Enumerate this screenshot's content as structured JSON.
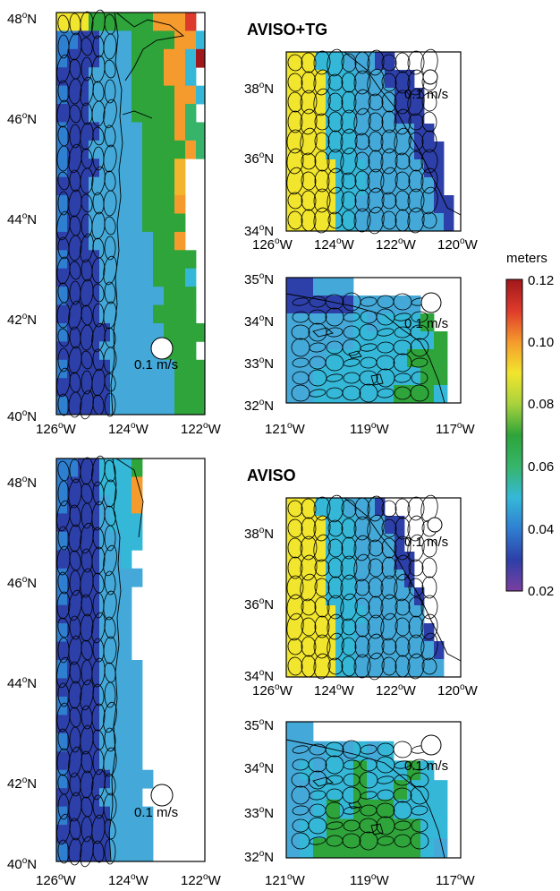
{
  "colorbar": {
    "unit_label": "meters",
    "min": 0.02,
    "max": 0.12,
    "ticks": [
      "0.12",
      "0.10",
      "0.08",
      "0.06",
      "0.04",
      "0.02"
    ],
    "colors": [
      "#7b3fa0",
      "#2d3fa8",
      "#2f7fd1",
      "#35b8d8",
      "#36b56a",
      "#2ea43a",
      "#a8d23c",
      "#f2e52d",
      "#f59a2c",
      "#de3a2b",
      "#a0181c"
    ]
  },
  "section_titles": {
    "upper": "AVISO+TG",
    "lower": "AVISO"
  },
  "panels": [
    {
      "id": "upper-north",
      "lat_labels": [
        "48°N",
        "46°N",
        "44°N",
        "42°N",
        "40°N"
      ],
      "lon_labels": [
        "126°W",
        "124°W",
        "122°W"
      ],
      "ref_vector": "0.1 m/s",
      "grid": [
        "yyy555555ddde",
        "ssbb4445555ddcn",
        "sbbb444555ddcn",
        "bbb4444555ddc",
        "sbb44445555ddc",
        "bbb44445555d6",
        "sbbb4444555d66",
        "sbb444445555d6",
        "sbbb4444555a",
        "bbb44444555a",
        "sbb44444555d",
        "sbb444445555",
        "bbb44444455d",
        "sbbb444445555",
        "bbbb44444555c",
        "sbbb444444555",
        "bbbb444445555",
        "sbbbb444445555",
        "bbbb444444555",
        "sbbbb444444555",
        "bbbbb444444555",
        "sbbbb4444445555"
      ]
    },
    {
      "id": "upper-south",
      "lat_labels": [
        "38°N",
        "36°N",
        "34°N"
      ],
      "lon_labels": [
        "126°W",
        "124°W",
        "122°W",
        "120°W"
      ],
      "ref_vector": "0.1 m/s",
      "grid": [
        "yyyccc444bb",
        "yyyyccc444bbb",
        "yyyyccc4444bbb",
        "yyyyccc4444bbb",
        "yyyyccc444444bb",
        "yyyyccc444444bbb",
        "yyyyyccc444444bb",
        "yyyyyccc4444444b",
        "yyyyycc44444444bb",
        "yyyyycc444444444b"
      ]
    },
    {
      "id": "upper-socal",
      "lat_labels": [
        "35°N",
        "34°N",
        "33°N",
        "32°N"
      ],
      "lon_labels": [
        "121°W",
        "119°W",
        "117°W"
      ],
      "ref_vector": "0.1 m/s",
      "grid": [
        "bb444",
        "bbbbb44444",
        "44444c4ccc5",
        "44444cccccc5",
        "444cccccc555",
        "44cccccccc55",
        "44cccccc555c"
      ]
    },
    {
      "id": "lower-north",
      "lat_labels": [
        "48°N",
        "46°N",
        "44°N",
        "42°N",
        "40°N"
      ],
      "lon_labels": [
        "126°W",
        "124°W",
        "122°W"
      ],
      "ref_vector": "0.1 m/s",
      "grid": [
        "ssbbccc5",
        "sbbbcccd",
        "sbbb4ccd",
        "bbbb4ccc",
        "sbbb44cc",
        "bbbb44c",
        "sbbb4444",
        "sbbb444",
        "bbbb444",
        "sbbb444",
        "bbbb444",
        "sbbb4444",
        "bbbb4444",
        "sbbb4444",
        "bbbb4444",
        "sbbb4444",
        "bbbb4444",
        "sbbbb4444",
        "bbbb4444",
        "sbbbb4444",
        "bbbbb4444",
        "sbbbb4444"
      ]
    },
    {
      "id": "lower-south",
      "lat_labels": [
        "38°N",
        "36°N",
        "34°N"
      ],
      "lon_labels": [
        "126°W",
        "124°W",
        "122°W",
        "120°W"
      ],
      "ref_vector": "0.1 m/s",
      "grid": [
        "yyyccc444b",
        "yyyyccc444bb",
        "yyyyccc4444b",
        "yyyyccc4444bb",
        "yyyyccc44444b",
        "yyyyccc444444b",
        "yyyyyccc444444",
        "yyyyycc4444444b",
        "yyyyycc44444444b",
        "yyyyycc444444444"
      ]
    },
    {
      "id": "lower-socal",
      "lat_labels": [
        "35°N",
        "34°N",
        "33°N",
        "32°N"
      ],
      "lon_labels": [
        "121°W",
        "119°W",
        "117°W"
      ],
      "ref_vector": "0.1 m/s",
      "grid": [
        "44",
        "444c4c4c",
        "4c4cc5ccc5c",
        "44ccc5cc5ccc",
        "44c5c555cccc",
        "4cc5555555cc",
        "4c55555555c4"
      ]
    }
  ]
}
